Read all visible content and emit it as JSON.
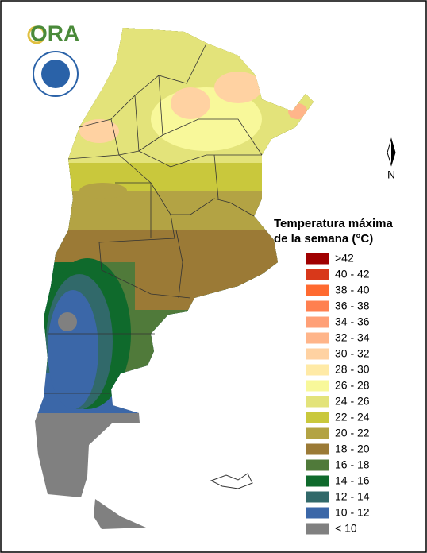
{
  "logo": {
    "text": "ORA"
  },
  "north_arrow": {
    "label": "N"
  },
  "legend": {
    "title_lines": [
      "Temperatura máxima",
      "de la semana (°C)"
    ],
    "items": [
      {
        "label": ">42",
        "color": "#a00000"
      },
      {
        "label": "40 - 42",
        "color": "#d8381a"
      },
      {
        "label": "38 - 40",
        "color": "#ff6a30"
      },
      {
        "label": "36 - 38",
        "color": "#ff8050"
      },
      {
        "label": "34 - 36",
        "color": "#ffa077"
      },
      {
        "label": "32 - 34",
        "color": "#ffb58a"
      },
      {
        "label": "30 - 32",
        "color": "#ffd2a2"
      },
      {
        "label": "28 - 30",
        "color": "#ffeaa6"
      },
      {
        "label": "26 - 28",
        "color": "#f8f89a"
      },
      {
        "label": "24 - 26",
        "color": "#e3e37a"
      },
      {
        "label": "22 - 24",
        "color": "#c9c83c"
      },
      {
        "label": "20 - 22",
        "color": "#b3a344"
      },
      {
        "label": "18 - 20",
        "color": "#9b7a36"
      },
      {
        "label": "16 - 18",
        "color": "#507a3a"
      },
      {
        "label": "14 - 16",
        "color": "#0f6a2c"
      },
      {
        "label": "12 - 14",
        "color": "#31696a"
      },
      {
        "label": "10 - 12",
        "color": "#3b67a8"
      },
      {
        "label": "< 10",
        "color": "#808080"
      }
    ]
  }
}
